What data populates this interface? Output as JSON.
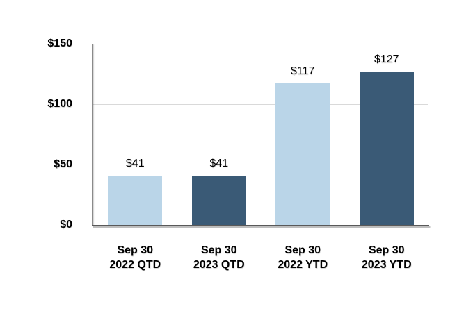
{
  "chart_data": {
    "type": "bar",
    "title": "",
    "xlabel": "",
    "ylabel": "",
    "categories": [
      {
        "line1": "Sep 30",
        "line2": "2022 QTD"
      },
      {
        "line1": "Sep 30",
        "line2": "2023 QTD"
      },
      {
        "line1": "Sep 30",
        "line2": "2022 YTD"
      },
      {
        "line1": "Sep 30",
        "line2": "2023 YTD"
      }
    ],
    "values": [
      41,
      41,
      117,
      127
    ],
    "data_labels": [
      "$41",
      "$41",
      "$117",
      "$127"
    ],
    "bar_colors": [
      "#BAD5E8",
      "#3A5A76",
      "#BAD5E8",
      "#3A5A76"
    ],
    "y_axis": {
      "min": 0,
      "max": 150,
      "tick_step": 50,
      "tick_values": [
        0,
        50,
        100,
        150
      ],
      "tick_labels": [
        "$0",
        "$50",
        "$100",
        "$150"
      ]
    },
    "grid": true,
    "legend": false,
    "colors": {
      "bar_light": "#BAD5E8",
      "bar_dark": "#3A5A76",
      "gridline": "#D9D9D9",
      "baseline": "#595959",
      "y_axis_line": "#8A8A8A",
      "text": "#000000",
      "background": "#FFFFFF"
    }
  }
}
